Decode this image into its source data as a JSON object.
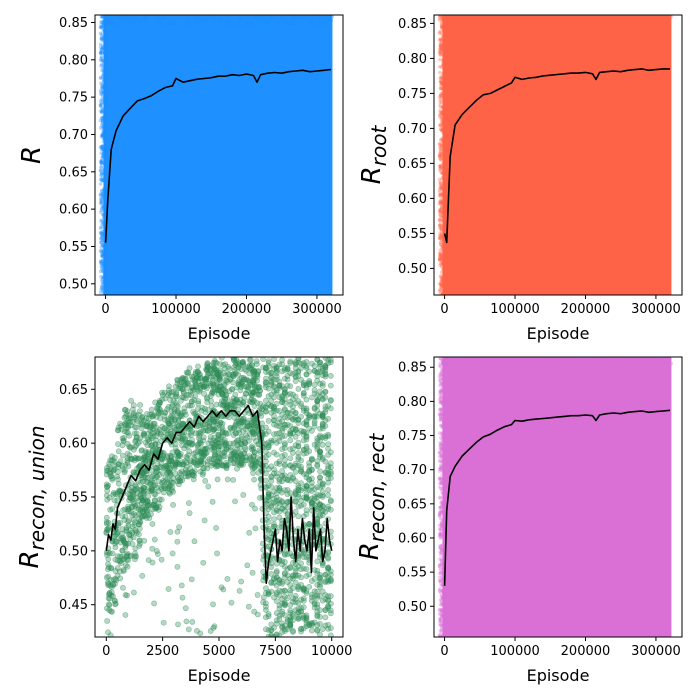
{
  "figure": {
    "layout": "2x2 grid"
  },
  "chart_data": [
    {
      "type": "scatter",
      "ylabel": "R",
      "ylabel_sub": "",
      "xlabel": "Episode",
      "xlim": [
        -15000,
        337000
      ],
      "ylim": [
        0.485,
        0.86
      ],
      "xticks": [
        0,
        100000,
        200000,
        300000
      ],
      "xtick_labels": [
        "0",
        "100000",
        "200000",
        "300000"
      ],
      "yticks": [
        0.5,
        0.55,
        0.6,
        0.65,
        0.7,
        0.75,
        0.8,
        0.85
      ],
      "ytick_labels": [
        "0.50",
        "0.55",
        "0.60",
        "0.65",
        "0.70",
        "0.75",
        "0.80",
        "0.85"
      ],
      "scatter": {
        "color": "#1e90ff",
        "x_range": [
          -3000,
          322000
        ],
        "dense": true
      },
      "series": [
        {
          "color": "#000000",
          "x": [
            0,
            3000,
            8000,
            15000,
            25000,
            35000,
            45000,
            55000,
            65000,
            75000,
            85000,
            95000,
            100000,
            110000,
            120000,
            130000,
            140000,
            150000,
            160000,
            170000,
            180000,
            190000,
            200000,
            210000,
            215000,
            220000,
            230000,
            240000,
            250000,
            260000,
            270000,
            280000,
            290000,
            300000,
            310000,
            320000
          ],
          "y": [
            0.555,
            0.61,
            0.68,
            0.705,
            0.725,
            0.735,
            0.745,
            0.748,
            0.752,
            0.758,
            0.763,
            0.765,
            0.775,
            0.77,
            0.772,
            0.774,
            0.775,
            0.776,
            0.778,
            0.778,
            0.78,
            0.779,
            0.781,
            0.779,
            0.77,
            0.78,
            0.782,
            0.783,
            0.782,
            0.784,
            0.785,
            0.786,
            0.784,
            0.785,
            0.786,
            0.787
          ]
        }
      ]
    },
    {
      "type": "scatter",
      "ylabel": "R",
      "ylabel_sub": "root",
      "xlabel": "Episode",
      "xlim": [
        -15000,
        337000
      ],
      "ylim": [
        0.462,
        0.862
      ],
      "xticks": [
        0,
        100000,
        200000,
        300000
      ],
      "xtick_labels": [
        "0",
        "100000",
        "200000",
        "300000"
      ],
      "yticks": [
        0.5,
        0.55,
        0.6,
        0.65,
        0.7,
        0.75,
        0.8,
        0.85
      ],
      "ytick_labels": [
        "0.50",
        "0.55",
        "0.60",
        "0.65",
        "0.70",
        "0.75",
        "0.80",
        "0.85"
      ],
      "scatter": {
        "color": "#ff6347",
        "x_range": [
          -3000,
          322000
        ],
        "dense": true
      },
      "series": [
        {
          "color": "#000000",
          "x": [
            0,
            3000,
            8000,
            15000,
            25000,
            35000,
            45000,
            55000,
            65000,
            75000,
            85000,
            95000,
            100000,
            110000,
            120000,
            130000,
            140000,
            150000,
            160000,
            170000,
            180000,
            190000,
            200000,
            210000,
            215000,
            220000,
            230000,
            240000,
            250000,
            260000,
            270000,
            280000,
            290000,
            300000,
            310000,
            320000
          ],
          "y": [
            0.55,
            0.537,
            0.66,
            0.705,
            0.72,
            0.73,
            0.74,
            0.748,
            0.75,
            0.755,
            0.76,
            0.765,
            0.773,
            0.77,
            0.772,
            0.773,
            0.775,
            0.776,
            0.777,
            0.778,
            0.779,
            0.779,
            0.78,
            0.778,
            0.77,
            0.78,
            0.781,
            0.782,
            0.781,
            0.783,
            0.784,
            0.785,
            0.783,
            0.784,
            0.785,
            0.785
          ]
        }
      ]
    },
    {
      "type": "scatter",
      "ylabel": "R",
      "ylabel_sub": "recon, union",
      "xlabel": "Episode",
      "xlim": [
        -500,
        10500
      ],
      "ylim": [
        0.42,
        0.68
      ],
      "xticks": [
        0,
        2500,
        5000,
        7500,
        10000
      ],
      "xtick_labels": [
        "0",
        "2500",
        "5000",
        "7500",
        "10000"
      ],
      "yticks": [
        0.45,
        0.5,
        0.55,
        0.6,
        0.65
      ],
      "ytick_labels": [
        "0.45",
        "0.50",
        "0.55",
        "0.60",
        "0.65"
      ],
      "scatter": {
        "color": "#2e8b57",
        "x_range": [
          0,
          10000
        ],
        "dense": false
      },
      "series": [
        {
          "color": "#000000",
          "x": [
            0,
            100,
            200,
            300,
            400,
            500,
            700,
            900,
            1100,
            1300,
            1500,
            1700,
            1900,
            2100,
            2300,
            2500,
            2700,
            2900,
            3100,
            3300,
            3500,
            3700,
            3900,
            4100,
            4300,
            4500,
            4700,
            4900,
            5100,
            5300,
            5500,
            5700,
            5900,
            6100,
            6300,
            6500,
            6700,
            6900,
            7000,
            7100,
            7200,
            7300,
            7400,
            7500,
            7600,
            7700,
            7800,
            7900,
            8000,
            8100,
            8200,
            8300,
            8400,
            8500,
            8600,
            8700,
            8800,
            8900,
            9000,
            9100,
            9200,
            9300,
            9400,
            9500,
            9600,
            9700,
            9800,
            9900,
            10000
          ],
          "y": [
            0.5,
            0.515,
            0.51,
            0.525,
            0.52,
            0.54,
            0.55,
            0.56,
            0.57,
            0.565,
            0.575,
            0.58,
            0.575,
            0.59,
            0.585,
            0.6,
            0.605,
            0.6,
            0.61,
            0.61,
            0.615,
            0.62,
            0.615,
            0.625,
            0.62,
            0.625,
            0.63,
            0.625,
            0.63,
            0.625,
            0.63,
            0.63,
            0.625,
            0.63,
            0.635,
            0.625,
            0.63,
            0.6,
            0.52,
            0.47,
            0.49,
            0.5,
            0.51,
            0.52,
            0.49,
            0.51,
            0.5,
            0.53,
            0.52,
            0.5,
            0.55,
            0.51,
            0.49,
            0.52,
            0.5,
            0.53,
            0.51,
            0.5,
            0.52,
            0.48,
            0.54,
            0.5,
            0.51,
            0.52,
            0.49,
            0.5,
            0.53,
            0.51,
            0.5
          ]
        }
      ]
    },
    {
      "type": "scatter",
      "ylabel": "R",
      "ylabel_sub": "recon, rect",
      "xlabel": "Episode",
      "xlim": [
        -15000,
        337000
      ],
      "ylim": [
        0.455,
        0.865
      ],
      "xticks": [
        0,
        100000,
        200000,
        300000
      ],
      "xtick_labels": [
        "0",
        "100000",
        "200000",
        "300000"
      ],
      "yticks": [
        0.5,
        0.55,
        0.6,
        0.65,
        0.7,
        0.75,
        0.8,
        0.85
      ],
      "ytick_labels": [
        "0.50",
        "0.55",
        "0.60",
        "0.65",
        "0.70",
        "0.75",
        "0.80",
        "0.85"
      ],
      "scatter": {
        "color": "#da70d6",
        "x_range": [
          -3000,
          322000
        ],
        "dense": true
      },
      "series": [
        {
          "color": "#000000",
          "x": [
            0,
            3000,
            8000,
            15000,
            25000,
            35000,
            45000,
            55000,
            65000,
            75000,
            85000,
            95000,
            100000,
            110000,
            120000,
            130000,
            140000,
            150000,
            160000,
            170000,
            180000,
            190000,
            200000,
            210000,
            215000,
            220000,
            230000,
            240000,
            250000,
            260000,
            270000,
            280000,
            290000,
            300000,
            310000,
            320000
          ],
          "y": [
            0.53,
            0.64,
            0.69,
            0.705,
            0.72,
            0.73,
            0.74,
            0.748,
            0.752,
            0.758,
            0.763,
            0.766,
            0.772,
            0.771,
            0.773,
            0.774,
            0.775,
            0.776,
            0.777,
            0.778,
            0.779,
            0.779,
            0.78,
            0.779,
            0.772,
            0.78,
            0.782,
            0.783,
            0.782,
            0.784,
            0.785,
            0.786,
            0.784,
            0.785,
            0.786,
            0.787
          ]
        }
      ]
    }
  ]
}
